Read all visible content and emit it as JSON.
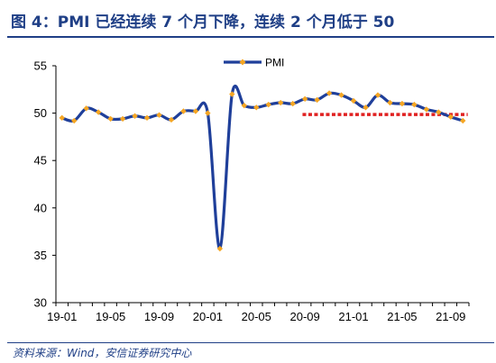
{
  "header": {
    "title": "图 4：PMI 已经连续 7 个月下降，连续 2 个月低于 50"
  },
  "source": "资料来源：Wind，安信证券研究中心",
  "colors": {
    "line": "#1f3f9a",
    "marker": "#f5a623",
    "reference": "#e02020",
    "title": "#1f3f86",
    "axis": "#000000"
  },
  "chart_data": {
    "type": "line",
    "title": "",
    "xlabel": "",
    "ylabel": "",
    "ylim": [
      30,
      55
    ],
    "yticks": [
      30,
      35,
      40,
      45,
      50,
      55
    ],
    "grid": false,
    "legend_position": "top-center",
    "x": [
      "19-01",
      "19-02",
      "19-03",
      "19-04",
      "19-05",
      "19-06",
      "19-07",
      "19-08",
      "19-09",
      "19-10",
      "19-11",
      "19-12",
      "20-01",
      "20-02",
      "20-03",
      "20-04",
      "20-05",
      "20-06",
      "20-07",
      "20-08",
      "20-09",
      "20-10",
      "20-11",
      "20-12",
      "21-01",
      "21-02",
      "21-03",
      "21-04",
      "21-05",
      "21-06",
      "21-07",
      "21-08",
      "21-09",
      "21-10"
    ],
    "xtick_labels": [
      "19-01",
      "19-05",
      "19-09",
      "20-01",
      "20-05",
      "20-09",
      "21-01",
      "21-05",
      "21-09"
    ],
    "series": [
      {
        "name": "PMI",
        "values": [
          49.5,
          49.2,
          50.5,
          50.1,
          49.4,
          49.4,
          49.7,
          49.5,
          49.8,
          49.3,
          50.2,
          50.2,
          50.0,
          35.7,
          52.0,
          50.8,
          50.6,
          50.9,
          51.1,
          51.0,
          51.5,
          51.4,
          52.1,
          51.9,
          51.3,
          50.6,
          51.9,
          51.1,
          51.0,
          50.9,
          50.4,
          50.1,
          49.6,
          49.2
        ]
      }
    ],
    "reference_line": {
      "value": 50,
      "from": "20-09",
      "to": "21-10"
    }
  }
}
